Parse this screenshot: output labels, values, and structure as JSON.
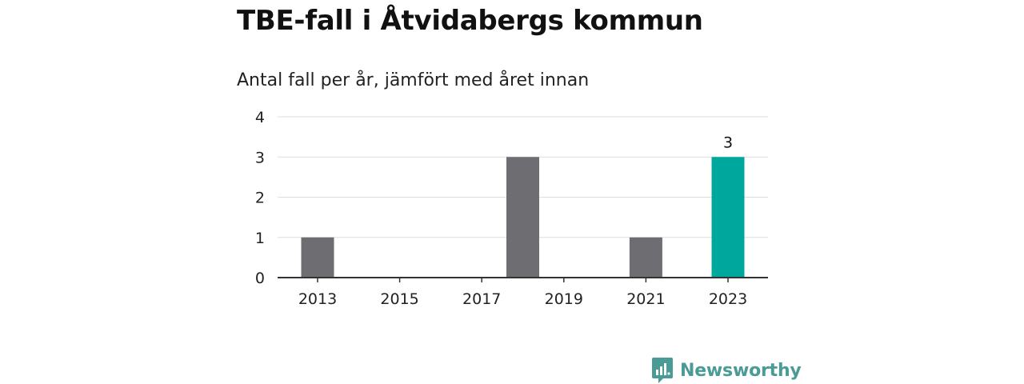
{
  "header": {
    "title": "TBE-fall i Åtvidabergs kommun",
    "subtitle": "Antal fall per år, jämfört med året innan"
  },
  "brand": {
    "name": "Newsworthy",
    "icon": "newsworthy-logo-icon",
    "color": "#4a9a96"
  },
  "colors": {
    "bar": "#6e6d72",
    "highlight": "#00a79d",
    "grid": "#dddddd",
    "axis": "#333333"
  },
  "chart_data": {
    "type": "bar",
    "categories": [
      "2013",
      "2014",
      "2015",
      "2016",
      "2017",
      "2018",
      "2019",
      "2020",
      "2021",
      "2022",
      "2023"
    ],
    "values": [
      1,
      0,
      0,
      0,
      0,
      3,
      0,
      0,
      1,
      0,
      3
    ],
    "x_tick_labels": [
      "2013",
      "2015",
      "2017",
      "2019",
      "2021",
      "2023"
    ],
    "y_ticks": [
      0,
      1,
      2,
      3,
      4
    ],
    "ylim": [
      0,
      4
    ],
    "grid": true,
    "highlight_category": "2023",
    "data_labels": [
      {
        "category": "2023",
        "text": "3"
      }
    ],
    "xlabel": "",
    "ylabel": ""
  }
}
